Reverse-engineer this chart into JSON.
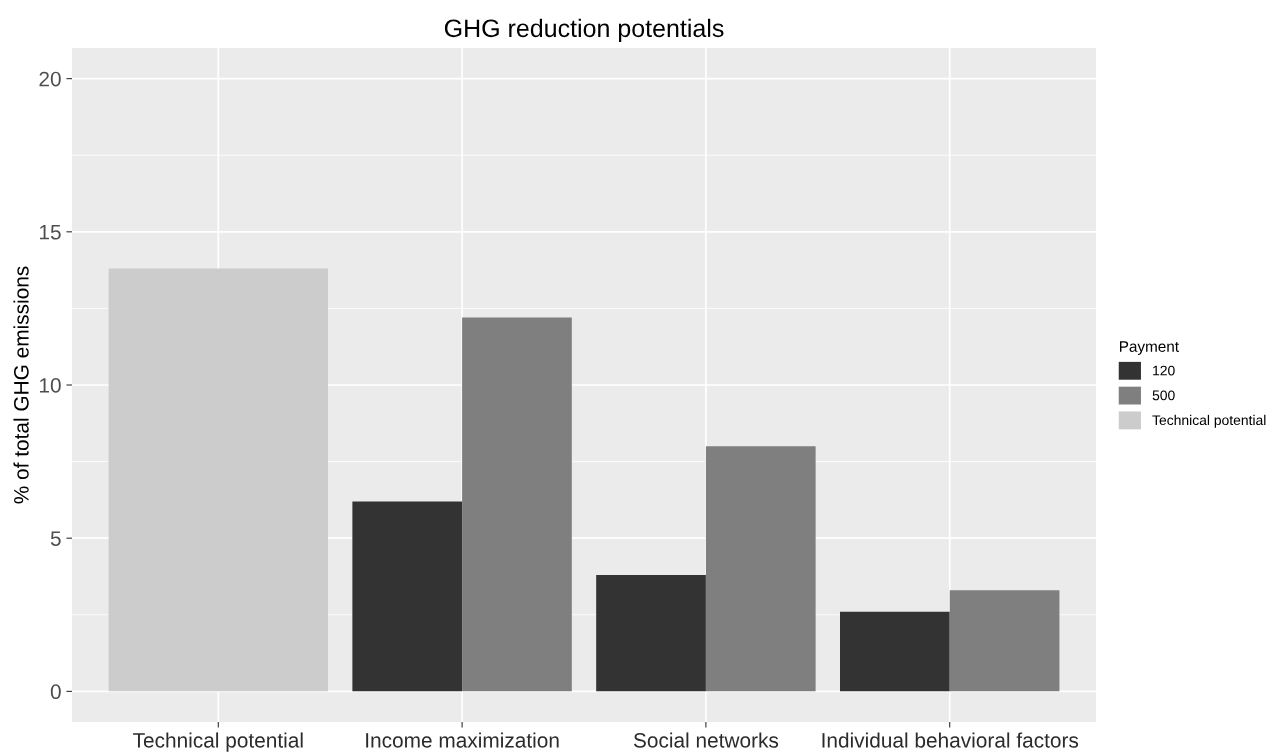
{
  "chart_data": {
    "type": "bar",
    "title": "GHG reduction potentials",
    "ylabel": "% of total GHG emissions",
    "legend_title": "Payment",
    "categories": [
      "Technical potential",
      "Income maximization",
      "Social networks",
      "Individual behavioral factors"
    ],
    "series": [
      {
        "name": "120",
        "color": "#333333",
        "values": [
          null,
          6.2,
          3.8,
          2.6
        ]
      },
      {
        "name": "500",
        "color": "#7f7f7f",
        "values": [
          null,
          12.2,
          8.0,
          3.3
        ]
      },
      {
        "name": "Technical potential",
        "color": "#cccccc",
        "values": [
          13.8,
          null,
          null,
          null
        ]
      }
    ],
    "ylim": [
      -1,
      21
    ],
    "yticks": [
      0,
      5,
      10,
      15,
      20
    ],
    "grid": true,
    "legend": "right"
  }
}
